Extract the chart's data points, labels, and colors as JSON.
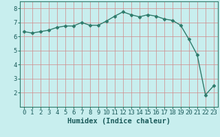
{
  "x": [
    0,
    1,
    2,
    3,
    4,
    5,
    6,
    7,
    8,
    9,
    10,
    11,
    12,
    13,
    14,
    15,
    16,
    17,
    18,
    19,
    20,
    21,
    22,
    23
  ],
  "y": [
    6.35,
    6.25,
    6.35,
    6.45,
    6.65,
    6.75,
    6.75,
    7.0,
    6.8,
    6.8,
    7.1,
    7.45,
    7.75,
    7.55,
    7.4,
    7.55,
    7.45,
    7.25,
    7.15,
    6.8,
    5.8,
    4.7,
    1.85,
    2.5
  ],
  "line_color": "#2d7a6a",
  "marker": "D",
  "markersize": 2.5,
  "linewidth": 1.0,
  "bg_color": "#c8eeee",
  "grid_color": "#d08888",
  "xlabel": "Humidex (Indice chaleur)",
  "xlabel_fontsize": 7.5,
  "tick_fontsize": 6.5,
  "ylim": [
    1.0,
    8.5
  ],
  "xlim": [
    -0.5,
    23.5
  ],
  "yticks": [
    2,
    3,
    4,
    5,
    6,
    7,
    8
  ],
  "xticks": [
    0,
    1,
    2,
    3,
    4,
    5,
    6,
    7,
    8,
    9,
    10,
    11,
    12,
    13,
    14,
    15,
    16,
    17,
    18,
    19,
    20,
    21,
    22,
    23
  ],
  "text_color": "#1a5a5a",
  "spine_color": "#2d7a6a"
}
